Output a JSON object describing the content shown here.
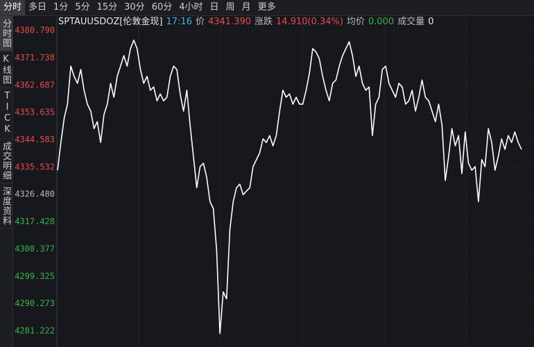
{
  "toolbar": {
    "tabs": [
      "分时",
      "多日",
      "1分",
      "5分",
      "15分",
      "30分",
      "60分",
      "4小时",
      "日",
      "周",
      "月",
      "更多"
    ]
  },
  "side_tabs": [
    "分时图",
    "K线图",
    "TICK",
    "成交明细",
    "深度资料"
  ],
  "info": {
    "symbol": "SPTAUUSDOZ[伦敦金现]",
    "time": "17:16",
    "price_label": "价",
    "price": "4341.390",
    "change_label": "涨跌",
    "change": "14.910(0.34%)",
    "avg_label": "均价",
    "avg": "0.000",
    "volume_label": "成交量",
    "volume": "0"
  },
  "chart_data": {
    "type": "line",
    "color": "#ffffff",
    "grid": true,
    "colors": {
      "up": "#e84a4a",
      "flat": "#b8b8b8",
      "down": "#36b34a"
    },
    "ylim": [
      4275.93,
      4385.4
    ],
    "yticks": [
      {
        "value": 4380.79,
        "label": "4380.790"
      },
      {
        "value": 4371.738,
        "label": "4371.738"
      },
      {
        "value": 4362.687,
        "label": "4362.687"
      },
      {
        "value": 4353.635,
        "label": "4353.635"
      },
      {
        "value": 4344.583,
        "label": "4344.583"
      },
      {
        "value": 4335.532,
        "label": "4335.532"
      },
      {
        "value": 4326.48,
        "label": "4326.480"
      },
      {
        "value": 4317.428,
        "label": "4317.428"
      },
      {
        "value": 4308.377,
        "label": "4308.377"
      },
      {
        "value": 4299.325,
        "label": "4299.325"
      },
      {
        "value": 4290.273,
        "label": "4290.273"
      },
      {
        "value": 4281.222,
        "label": "4281.222"
      }
    ],
    "values": [
      4334.5,
      4343.7,
      4351.8,
      4356.4,
      4369.0,
      4365.6,
      4363.3,
      4367.9,
      4361.0,
      4356.4,
      4354.1,
      4348.3,
      4350.6,
      4343.7,
      4352.9,
      4356.4,
      4363.3,
      4358.7,
      4365.6,
      4369.0,
      4372.5,
      4369.0,
      4374.8,
      4377.6,
      4374.8,
      4367.9,
      4363.3,
      4365.6,
      4361.0,
      4362.1,
      4357.5,
      4359.8,
      4357.5,
      4358.7,
      4365.6,
      4369.0,
      4367.9,
      4359.8,
      4354.1,
      4361.0,
      4349.5,
      4339.1,
      4328.7,
      4335.7,
      4336.8,
      4332.2,
      4324.1,
      4321.8,
      4308.0,
      4280.4,
      4294.2,
      4291.9,
      4314.9,
      4324.1,
      4328.7,
      4329.9,
      4326.4,
      4327.6,
      4328.7,
      4335.7,
      4338.0,
      4340.3,
      4344.9,
      4343.7,
      4346.0,
      4342.6,
      4346.0,
      4354.1,
      4361.0,
      4358.7,
      4359.8,
      4356.4,
      4358.7,
      4356.4,
      4356.4,
      4361.0,
      4366.7,
      4374.8,
      4373.7,
      4371.4,
      4365.6,
      4361.0,
      4357.5,
      4363.3,
      4364.4,
      4369.0,
      4372.5,
      4374.8,
      4377.1,
      4372.5,
      4365.6,
      4369.0,
      4363.3,
      4361.0,
      4362.1,
      4346.0,
      4356.4,
      4358.7,
      4367.9,
      4369.0,
      4363.3,
      4361.0,
      4358.7,
      4363.3,
      4362.1,
      4356.4,
      4357.5,
      4361.0,
      4354.1,
      4358.7,
      4364.4,
      4358.7,
      4357.5,
      4354.1,
      4350.6,
      4356.4,
      4349.5,
      4331.1,
      4339.1,
      4348.3,
      4342.6,
      4346.0,
      4333.4,
      4347.2,
      4336.8,
      4334.5,
      4335.7,
      4324.1,
      4338.0,
      4335.7,
      4348.3,
      4343.7,
      4334.5,
      4339.1,
      4344.9,
      4341.4,
      4346.0,
      4343.7,
      4347.2,
      4343.7,
      4341.4
    ]
  }
}
